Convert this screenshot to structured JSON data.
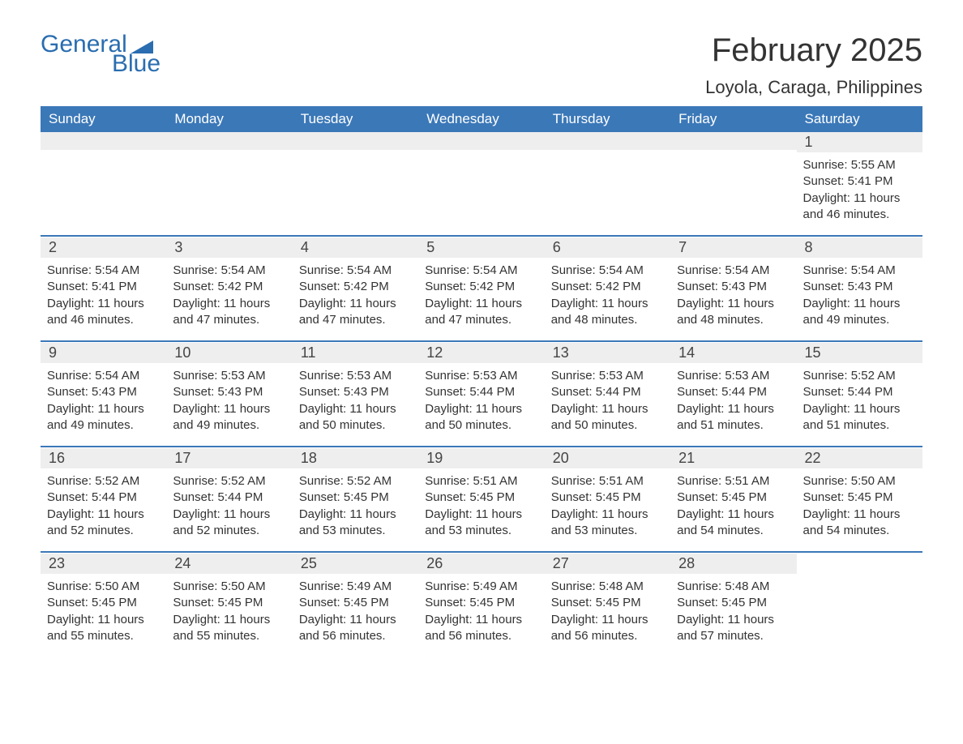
{
  "logo": {
    "word1": "General",
    "word2": "Blue",
    "brand_color": "#2a6db0"
  },
  "title": "February 2025",
  "location": "Loyola, Caraga, Philippines",
  "colors": {
    "header_bg": "#3b78b8",
    "header_text": "#ffffff",
    "daynum_bg": "#eeeeee",
    "rule": "#3b78b8",
    "text": "#333333",
    "background": "#ffffff"
  },
  "weekday_labels": [
    "Sunday",
    "Monday",
    "Tuesday",
    "Wednesday",
    "Thursday",
    "Friday",
    "Saturday"
  ],
  "calendar": {
    "type": "table",
    "columns": 7,
    "rows": 5,
    "start_weekday_index": 6,
    "days": [
      {
        "n": 1,
        "sunrise": "5:55 AM",
        "sunset": "5:41 PM",
        "daylight": "11 hours and 46 minutes."
      },
      {
        "n": 2,
        "sunrise": "5:54 AM",
        "sunset": "5:41 PM",
        "daylight": "11 hours and 46 minutes."
      },
      {
        "n": 3,
        "sunrise": "5:54 AM",
        "sunset": "5:42 PM",
        "daylight": "11 hours and 47 minutes."
      },
      {
        "n": 4,
        "sunrise": "5:54 AM",
        "sunset": "5:42 PM",
        "daylight": "11 hours and 47 minutes."
      },
      {
        "n": 5,
        "sunrise": "5:54 AM",
        "sunset": "5:42 PM",
        "daylight": "11 hours and 47 minutes."
      },
      {
        "n": 6,
        "sunrise": "5:54 AM",
        "sunset": "5:42 PM",
        "daylight": "11 hours and 48 minutes."
      },
      {
        "n": 7,
        "sunrise": "5:54 AM",
        "sunset": "5:43 PM",
        "daylight": "11 hours and 48 minutes."
      },
      {
        "n": 8,
        "sunrise": "5:54 AM",
        "sunset": "5:43 PM",
        "daylight": "11 hours and 49 minutes."
      },
      {
        "n": 9,
        "sunrise": "5:54 AM",
        "sunset": "5:43 PM",
        "daylight": "11 hours and 49 minutes."
      },
      {
        "n": 10,
        "sunrise": "5:53 AM",
        "sunset": "5:43 PM",
        "daylight": "11 hours and 49 minutes."
      },
      {
        "n": 11,
        "sunrise": "5:53 AM",
        "sunset": "5:43 PM",
        "daylight": "11 hours and 50 minutes."
      },
      {
        "n": 12,
        "sunrise": "5:53 AM",
        "sunset": "5:44 PM",
        "daylight": "11 hours and 50 minutes."
      },
      {
        "n": 13,
        "sunrise": "5:53 AM",
        "sunset": "5:44 PM",
        "daylight": "11 hours and 50 minutes."
      },
      {
        "n": 14,
        "sunrise": "5:53 AM",
        "sunset": "5:44 PM",
        "daylight": "11 hours and 51 minutes."
      },
      {
        "n": 15,
        "sunrise": "5:52 AM",
        "sunset": "5:44 PM",
        "daylight": "11 hours and 51 minutes."
      },
      {
        "n": 16,
        "sunrise": "5:52 AM",
        "sunset": "5:44 PM",
        "daylight": "11 hours and 52 minutes."
      },
      {
        "n": 17,
        "sunrise": "5:52 AM",
        "sunset": "5:44 PM",
        "daylight": "11 hours and 52 minutes."
      },
      {
        "n": 18,
        "sunrise": "5:52 AM",
        "sunset": "5:45 PM",
        "daylight": "11 hours and 53 minutes."
      },
      {
        "n": 19,
        "sunrise": "5:51 AM",
        "sunset": "5:45 PM",
        "daylight": "11 hours and 53 minutes."
      },
      {
        "n": 20,
        "sunrise": "5:51 AM",
        "sunset": "5:45 PM",
        "daylight": "11 hours and 53 minutes."
      },
      {
        "n": 21,
        "sunrise": "5:51 AM",
        "sunset": "5:45 PM",
        "daylight": "11 hours and 54 minutes."
      },
      {
        "n": 22,
        "sunrise": "5:50 AM",
        "sunset": "5:45 PM",
        "daylight": "11 hours and 54 minutes."
      },
      {
        "n": 23,
        "sunrise": "5:50 AM",
        "sunset": "5:45 PM",
        "daylight": "11 hours and 55 minutes."
      },
      {
        "n": 24,
        "sunrise": "5:50 AM",
        "sunset": "5:45 PM",
        "daylight": "11 hours and 55 minutes."
      },
      {
        "n": 25,
        "sunrise": "5:49 AM",
        "sunset": "5:45 PM",
        "daylight": "11 hours and 56 minutes."
      },
      {
        "n": 26,
        "sunrise": "5:49 AM",
        "sunset": "5:45 PM",
        "daylight": "11 hours and 56 minutes."
      },
      {
        "n": 27,
        "sunrise": "5:48 AM",
        "sunset": "5:45 PM",
        "daylight": "11 hours and 56 minutes."
      },
      {
        "n": 28,
        "sunrise": "5:48 AM",
        "sunset": "5:45 PM",
        "daylight": "11 hours and 57 minutes."
      }
    ]
  },
  "labels": {
    "sunrise": "Sunrise:",
    "sunset": "Sunset:",
    "daylight": "Daylight:"
  }
}
